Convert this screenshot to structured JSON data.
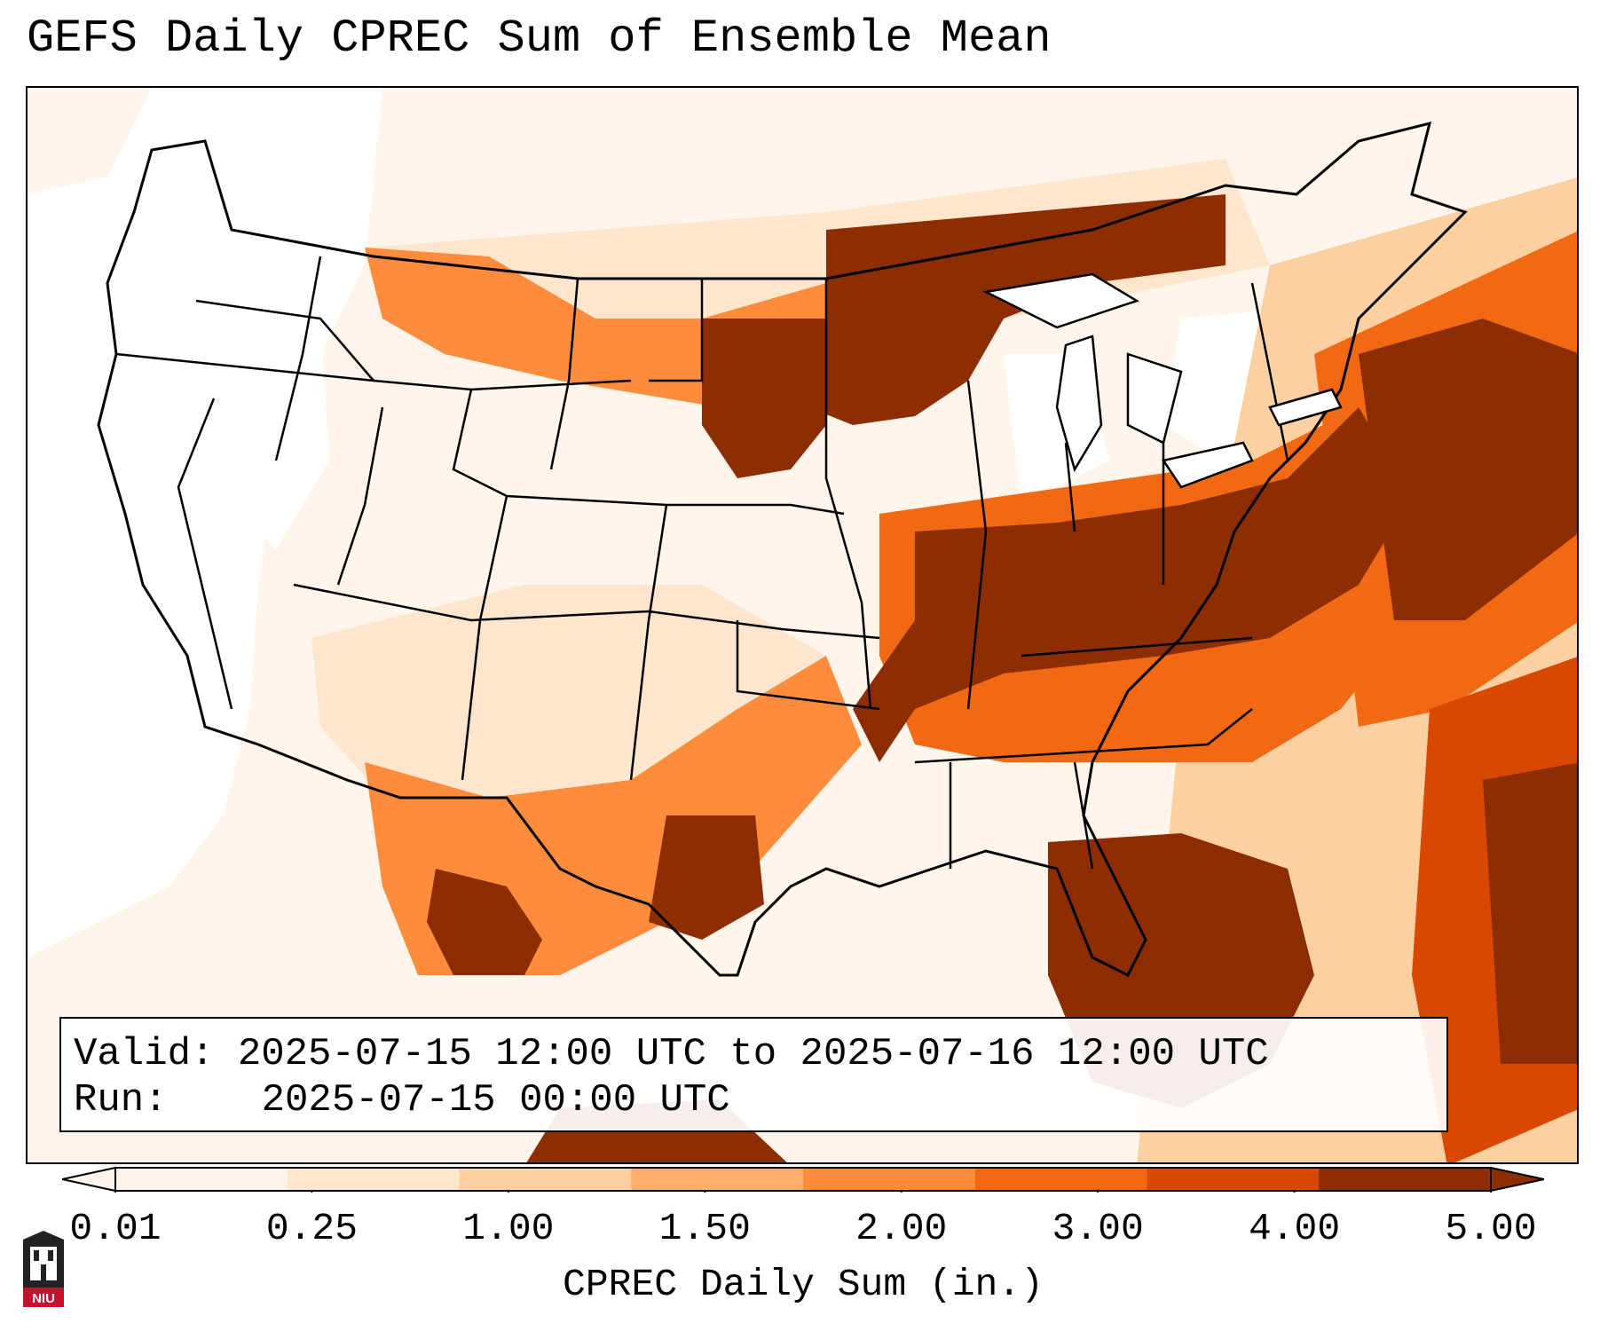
{
  "title": "GEFS Daily CPREC Sum of Ensemble Mean",
  "info": {
    "valid_label": "Valid:",
    "valid_value": "2025-07-15 12:00 UTC to 2025-07-16 12:00 UTC",
    "run_label": "Run:",
    "run_value": "2025-07-15 00:00 UTC"
  },
  "colorbar": {
    "label": "CPREC Daily Sum (in.)",
    "ticks": [
      "0.01",
      "0.25",
      "1.00",
      "1.50",
      "2.00",
      "3.00",
      "4.00",
      "5.00"
    ],
    "colors": [
      "#fff5eb",
      "#fee6ce",
      "#fdd0a2",
      "#fdae6b",
      "#fd8d3c",
      "#f16913",
      "#d94801",
      "#8c2d04"
    ]
  },
  "logo": {
    "text": "NIU",
    "color": "#c8102e"
  }
}
